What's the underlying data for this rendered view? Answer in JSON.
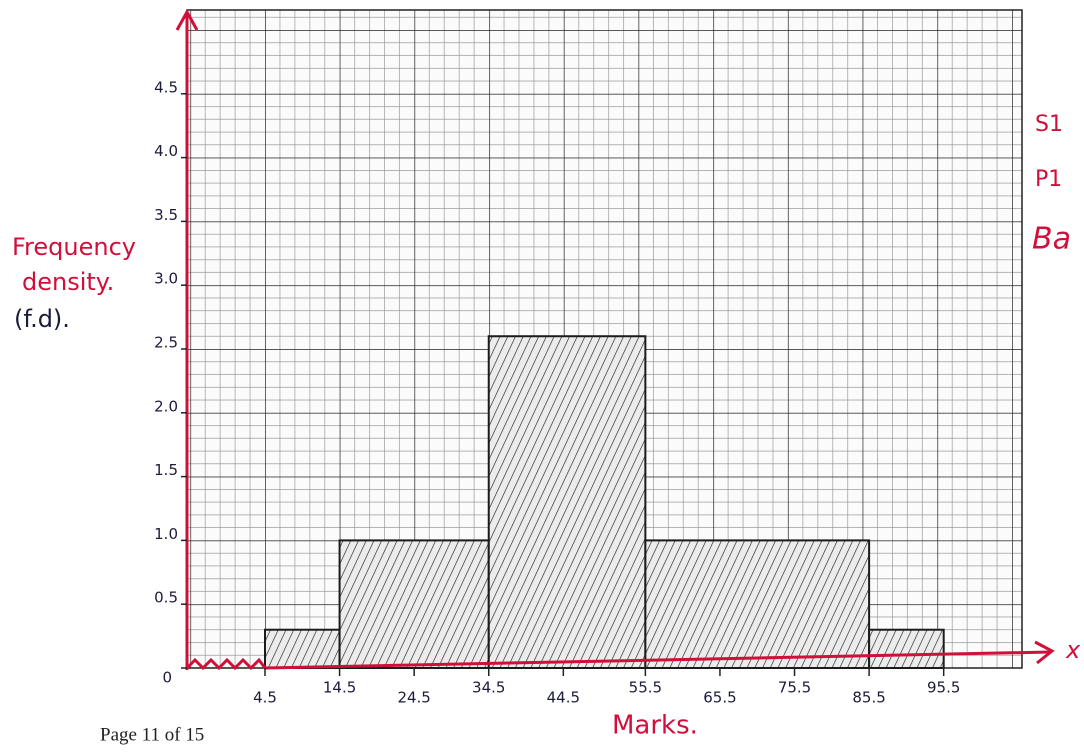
{
  "chart_data": {
    "type": "histogram",
    "bins": [
      4.5,
      14.5,
      34.5,
      55.5,
      85.5,
      95.5
    ],
    "values": [
      0.3,
      1.0,
      2.6,
      1.0,
      0.3
    ],
    "color": "#1b1b1b",
    "xlim": [
      4.5,
      106
    ],
    "xticks": [
      4.5,
      14.5,
      24.5,
      34.5,
      44.5,
      55.5,
      65.5,
      75.5,
      85.5,
      95.5
    ],
    "ylim": [
      0,
      5
    ],
    "yticks": [
      0,
      0.5,
      {
        "value": 1,
        "label": "1.0"
      },
      1.5,
      {
        "value": 2,
        "label": "2.0"
      },
      2.5,
      {
        "value": 3,
        "label": "3.0"
      },
      3.5,
      {
        "value": 4,
        "label": "4.0"
      },
      4.5
    ],
    "y_label": [
      "Frequency",
      "density.",
      "(f.d)."
    ],
    "x_label": "Marks.",
    "x_axis_letter": "x",
    "margin_notes": [
      "S1",
      "P1",
      "Ba"
    ],
    "footer": "Page 11 of 15"
  }
}
